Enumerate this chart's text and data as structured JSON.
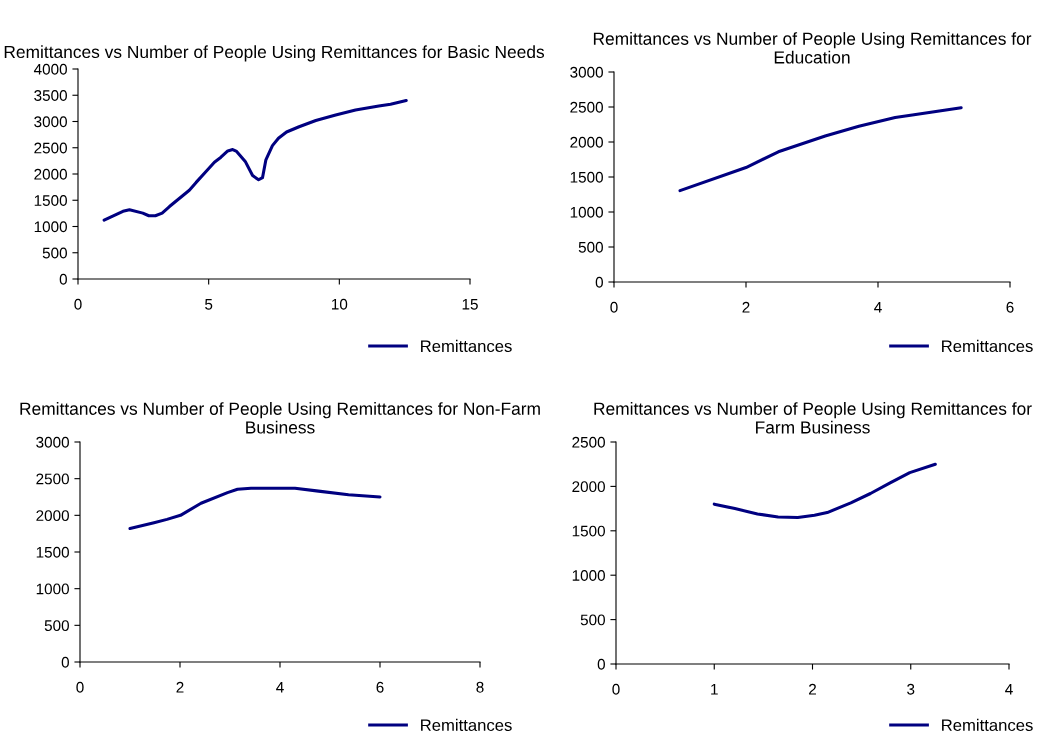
{
  "chart_data": [
    {
      "type": "line",
      "title": "Remittances vs Number of People Using Remittances for Basic Needs",
      "x": [
        1.0,
        1.72,
        1.97,
        2.48,
        2.71,
        2.96,
        3.22,
        3.5,
        4.26,
        4.52,
        4.96,
        5.22,
        5.47,
        5.73,
        5.92,
        6.07,
        6.4,
        6.68,
        6.91,
        7.06,
        7.19,
        7.44,
        7.67,
        7.98,
        8.46,
        9.1,
        9.86,
        10.62,
        11.51,
        11.96,
        12.56
      ],
      "series": [
        {
          "name": "Remittances",
          "color": "#000080",
          "values": [
            1120,
            1290,
            1320,
            1255,
            1205,
            1205,
            1255,
            1380,
            1690,
            1840,
            2080,
            2225,
            2320,
            2440,
            2465,
            2430,
            2240,
            1970,
            1890,
            1930,
            2270,
            2540,
            2680,
            2800,
            2900,
            3020,
            3125,
            3220,
            3295,
            3330,
            3400
          ]
        }
      ],
      "xlim": [
        0,
        15
      ],
      "xticks": [
        0,
        5,
        10,
        15
      ],
      "ylim": [
        0,
        4000
      ],
      "yticks": [
        0,
        500,
        1000,
        1500,
        2000,
        2500,
        3000,
        3500,
        4000
      ],
      "legend": "bottom right",
      "line_style": "solid",
      "grid": false
    },
    {
      "type": "line",
      "title": "Remittances vs Number of People Using Remittances for Education",
      "x": [
        1.0,
        2.0,
        2.49,
        3.2,
        3.71,
        4.26,
        4.52,
        5.26
      ],
      "series": [
        {
          "name": "Remittances",
          "color": "#000080",
          "values": [
            1305,
            1635,
            1860,
            2085,
            2225,
            2350,
            2385,
            2490
          ]
        }
      ],
      "xlim": [
        0,
        6
      ],
      "xticks": [
        0,
        2,
        4,
        6
      ],
      "ylim": [
        0,
        3000
      ],
      "yticks": [
        0,
        500,
        1000,
        1500,
        2000,
        2500,
        3000
      ],
      "legend": "bottom right",
      "line_style": "solid",
      "grid": false
    },
    {
      "type": "line",
      "title": "Remittances vs Number of People Using Remittances for Non-Farm Business",
      "x": [
        1.0,
        1.48,
        1.74,
        2.01,
        2.42,
        2.95,
        3.15,
        3.42,
        4.3,
        4.77,
        5.37,
        6.0
      ],
      "series": [
        {
          "name": "Remittances",
          "color": "#000080",
          "values": [
            1820,
            1900,
            1945,
            2000,
            2165,
            2310,
            2355,
            2370,
            2370,
            2330,
            2280,
            2250
          ]
        }
      ],
      "xlim": [
        0,
        8
      ],
      "xticks": [
        0,
        2,
        4,
        6,
        8
      ],
      "ylim": [
        0,
        3000
      ],
      "yticks": [
        0,
        500,
        1000,
        1500,
        2000,
        2500,
        3000
      ],
      "legend": "bottom right",
      "line_style": "solid",
      "grid": false
    },
    {
      "type": "line",
      "title": "Remittances vs Number of People Using Remittances for Farm Business",
      "x": [
        1.0,
        1.21,
        1.44,
        1.65,
        1.85,
        2.02,
        2.15,
        2.39,
        2.59,
        2.79,
        2.99,
        3.25
      ],
      "series": [
        {
          "name": "Remittances",
          "color": "#000080",
          "values": [
            1800,
            1750,
            1690,
            1655,
            1650,
            1675,
            1705,
            1815,
            1920,
            2040,
            2155,
            2250
          ]
        }
      ],
      "xlim": [
        0,
        4
      ],
      "xticks": [
        0,
        1,
        2,
        3,
        4
      ],
      "ylim": [
        0,
        2500
      ],
      "yticks": [
        0,
        500,
        1000,
        1500,
        2000,
        2500
      ],
      "legend": "bottom right",
      "line_style": "solid",
      "grid": false
    }
  ]
}
